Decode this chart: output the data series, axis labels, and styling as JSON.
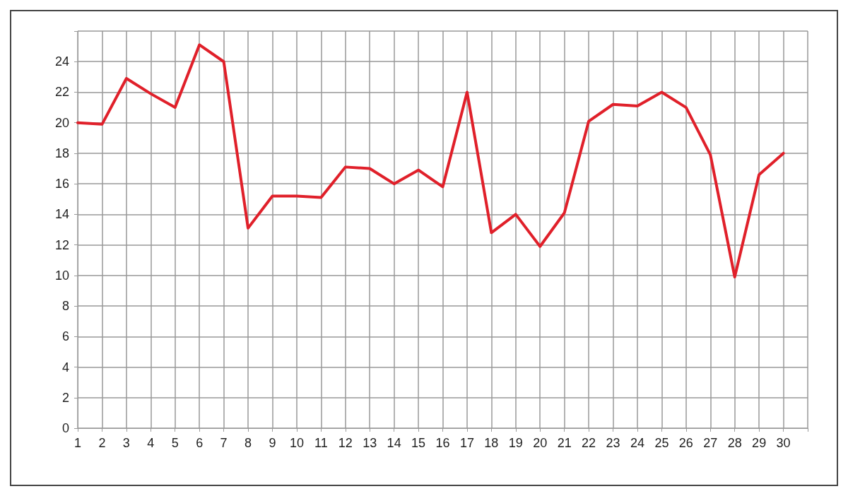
{
  "chart_data": {
    "type": "line",
    "x": [
      1,
      2,
      3,
      4,
      5,
      6,
      7,
      8,
      9,
      10,
      11,
      12,
      13,
      14,
      15,
      16,
      17,
      18,
      19,
      20,
      21,
      22,
      23,
      24,
      25,
      26,
      27,
      28,
      29,
      30
    ],
    "series": [
      {
        "color": "#e0202a",
        "values": [
          20,
          19.9,
          22.9,
          21.9,
          21,
          25.1,
          24,
          13.1,
          15.2,
          15.2,
          15.1,
          17.1,
          17,
          16,
          16.9,
          15.8,
          22,
          12.8,
          14,
          11.9,
          14.1,
          20.1,
          21.2,
          21.1,
          22,
          21,
          17.9,
          9.9,
          16.6,
          18
        ]
      }
    ],
    "xlim": [
      1,
      31
    ],
    "xticks": [
      1,
      2,
      3,
      4,
      5,
      6,
      7,
      8,
      9,
      10,
      11,
      12,
      13,
      14,
      15,
      16,
      17,
      18,
      19,
      20,
      21,
      22,
      23,
      24,
      25,
      26,
      27,
      28,
      29,
      30,
      {
        "value": 31,
        "label": null
      }
    ],
    "ylim": [
      0,
      26
    ],
    "yticks": [
      0,
      2,
      4,
      6,
      8,
      10,
      12,
      14,
      16,
      18,
      20,
      22,
      24,
      {
        "value": 26,
        "label": null
      }
    ],
    "grid": true,
    "marker": "none",
    "line_style": "solid"
  }
}
